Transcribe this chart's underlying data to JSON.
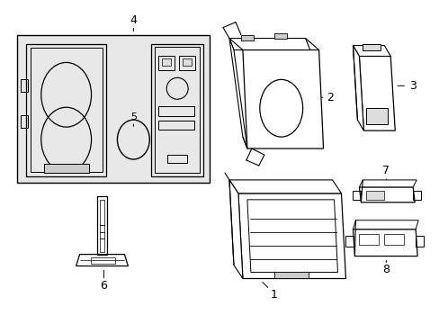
{
  "background_color": "#ffffff",
  "line_color": "#000000",
  "fig_width": 4.89,
  "fig_height": 3.6,
  "dpi": 100,
  "gray_fill": "#e8e8e8",
  "mid_gray": "#cccccc",
  "light_gray": "#dddddd"
}
